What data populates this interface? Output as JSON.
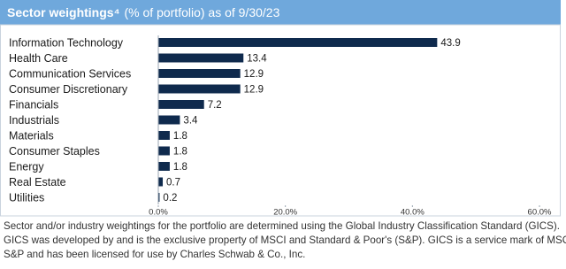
{
  "chart_data": {
    "type": "bar",
    "orientation": "horizontal",
    "title": "Sector weightings⁴",
    "subtitle": "(% of portfolio) as of 9/30/23",
    "categories": [
      "Information Technology",
      "Health Care",
      "Communication Services",
      "Consumer Discretionary",
      "Financials",
      "Industrials",
      "Materials",
      "Consumer Staples",
      "Energy",
      "Real Estate",
      "Utilities"
    ],
    "values": [
      43.9,
      13.4,
      12.9,
      12.9,
      7.2,
      3.4,
      1.8,
      1.8,
      1.8,
      0.7,
      0.2
    ],
    "color": "#0f2a4d",
    "xlim": [
      0,
      60
    ],
    "xticks": [
      {
        "value": 0,
        "label": "0.0%"
      },
      {
        "value": 20,
        "label": "20.0%"
      },
      {
        "value": 40,
        "label": "40.0%"
      },
      {
        "value": 60,
        "label": "60.0%"
      }
    ],
    "grid": false
  },
  "footnote": [
    "Sector and/or industry weightings for the portfolio are determined using the Global Industry Classification Standard (GICS).",
    "GICS was developed by and is the exclusive property of MSCI and Standard & Poor's (S&P). GICS is a service mark of MSCI and",
    "S&P and has been licensed for use by Charles Schwab & Co., Inc."
  ]
}
